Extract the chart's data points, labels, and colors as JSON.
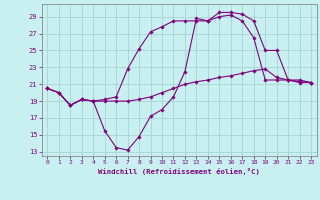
{
  "xlabel": "Windchill (Refroidissement éolien,°C)",
  "ylabel": "",
  "bg_color": "#c8f0f0",
  "grid_color": "#a0cece",
  "line_color": "#800080",
  "x_ticks": [
    0,
    1,
    2,
    3,
    4,
    5,
    6,
    7,
    8,
    9,
    10,
    11,
    12,
    13,
    14,
    15,
    16,
    17,
    18,
    19,
    20,
    21,
    22,
    23
  ],
  "y_ticks": [
    13,
    15,
    17,
    19,
    21,
    23,
    25,
    27,
    29
  ],
  "xlim": [
    -0.5,
    23.5
  ],
  "ylim": [
    12.5,
    30.5
  ],
  "line1_x": [
    0,
    1,
    2,
    3,
    4,
    5,
    6,
    7,
    8,
    9,
    10,
    11,
    12,
    13,
    14,
    15,
    16,
    17,
    18,
    19,
    20,
    21,
    22,
    23
  ],
  "line1_y": [
    20.5,
    20.0,
    18.5,
    19.2,
    19.0,
    15.5,
    13.5,
    13.2,
    14.8,
    17.2,
    18.0,
    19.5,
    22.5,
    28.8,
    28.5,
    29.5,
    29.5,
    29.3,
    28.5,
    25.0,
    25.0,
    21.5,
    21.2,
    21.2
  ],
  "line2_x": [
    0,
    1,
    2,
    3,
    4,
    5,
    6,
    7,
    8,
    9,
    10,
    11,
    12,
    13,
    14,
    15,
    16,
    17,
    18,
    19,
    20,
    21,
    22,
    23
  ],
  "line2_y": [
    20.5,
    20.0,
    18.5,
    19.2,
    19.0,
    19.0,
    19.0,
    19.0,
    19.2,
    19.5,
    20.0,
    20.5,
    21.0,
    21.3,
    21.5,
    21.8,
    22.0,
    22.3,
    22.6,
    22.8,
    21.8,
    21.5,
    21.3,
    21.2
  ],
  "line3_x": [
    0,
    1,
    2,
    3,
    4,
    5,
    6,
    7,
    8,
    9,
    10,
    11,
    12,
    13,
    14,
    15,
    16,
    17,
    18,
    19,
    20,
    21,
    22,
    23
  ],
  "line3_y": [
    20.5,
    20.0,
    18.5,
    19.2,
    19.0,
    19.2,
    19.5,
    22.8,
    25.2,
    27.2,
    27.8,
    28.5,
    28.5,
    28.5,
    28.5,
    29.0,
    29.2,
    28.5,
    26.5,
    21.5,
    21.5,
    21.5,
    21.5,
    21.2
  ]
}
